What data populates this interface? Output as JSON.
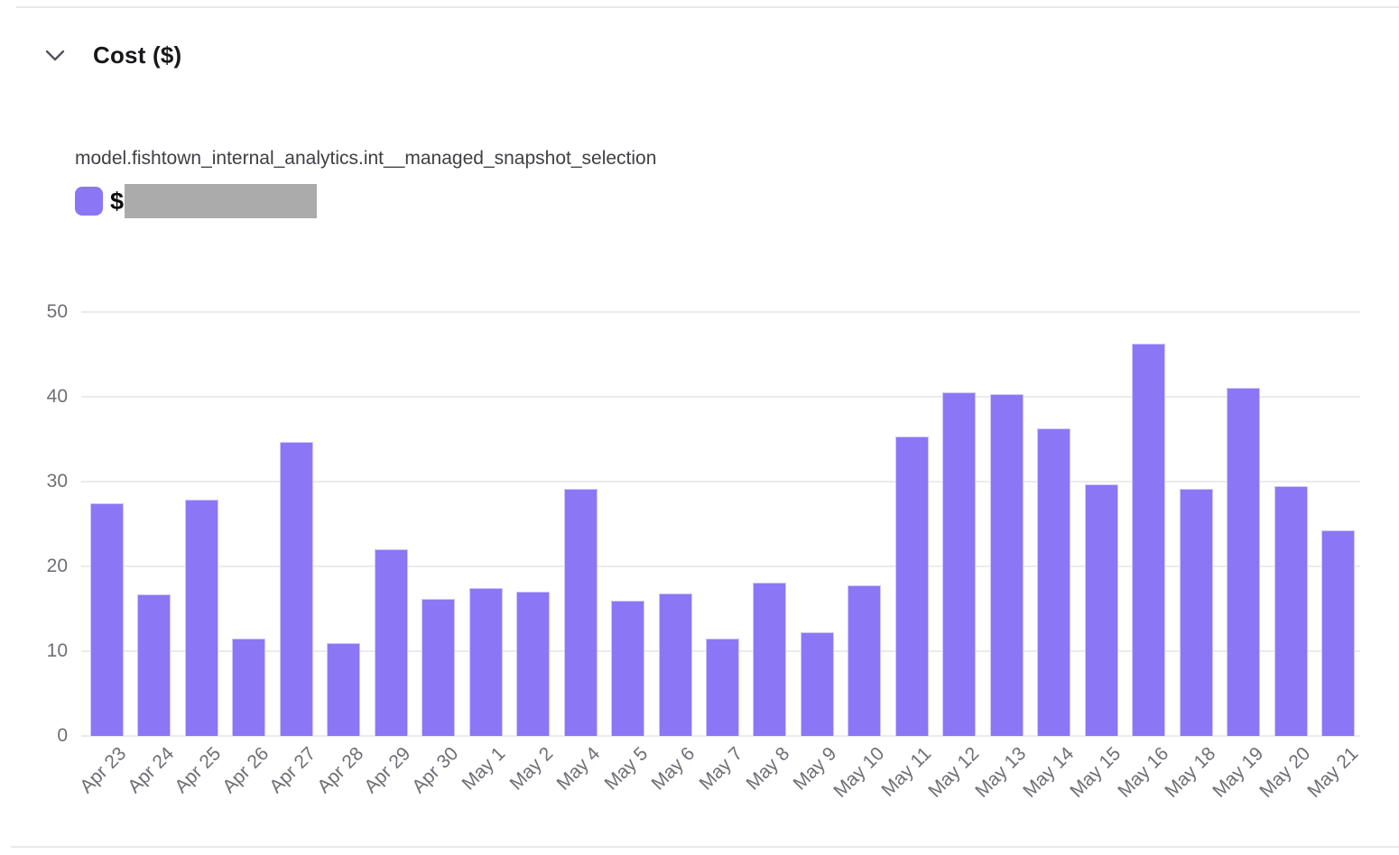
{
  "header": {
    "title": "Cost ($)",
    "collapse_icon": "chevron-down"
  },
  "legend": {
    "swatch_color": "#8b76f5",
    "prefix": "$",
    "value_redacted": true,
    "redaction_color": "#ababab"
  },
  "chart_data": {
    "type": "bar",
    "title": "Cost ($)",
    "series_label": "model.fishtown_internal_analytics.int__managed_snapshot_selection",
    "categories": [
      "Apr 23",
      "Apr 24",
      "Apr 25",
      "Apr 26",
      "Apr 27",
      "Apr 28",
      "Apr 29",
      "Apr 30",
      "May 1",
      "May 2",
      "May 4",
      "May 5",
      "May 6",
      "May 7",
      "May 8",
      "May 9",
      "May 10",
      "May 11",
      "May 12",
      "May 13",
      "May 14",
      "May 15",
      "May 16",
      "May 18",
      "May 19",
      "May 20",
      "May 21"
    ],
    "values": [
      27.4,
      16.7,
      27.9,
      11.5,
      34.7,
      11.0,
      22.0,
      16.2,
      17.4,
      17.0,
      29.1,
      16.0,
      16.8,
      11.5,
      18.1,
      12.2,
      17.8,
      35.3,
      40.5,
      40.3,
      36.3,
      29.7,
      46.3,
      29.1,
      41.1,
      29.5,
      24.3
    ],
    "xlabel": "",
    "ylabel": "",
    "ylim": [
      0,
      50
    ],
    "yticks": [
      0,
      10,
      20,
      30,
      40,
      50
    ],
    "grid": true,
    "bar_color": "#8b76f5",
    "gridline_color": "#ebebeb",
    "axis_text_color": "#6e6e76",
    "legend_position": "top-left",
    "x_label_rotation": -45
  }
}
